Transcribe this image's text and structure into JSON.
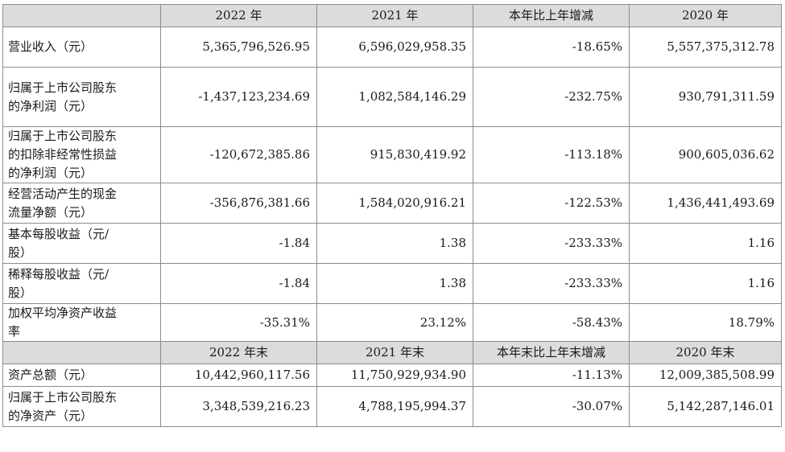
{
  "header1": [
    "2022 年",
    "2021 年",
    "本年比上年增减",
    "2020 年"
  ],
  "header2": [
    "2022 年末",
    "2021 年末",
    "本年末比上年末增减",
    "2020 年末"
  ],
  "rows1": [
    {
      "label": [
        "营业收入（元）"
      ],
      "values": [
        "5,365,796,526.95",
        "6,596,029,958.35",
        "-18.65%",
        "5,557,375,312.78"
      ]
    },
    {
      "label": [
        "归属于上市公司股东",
        "的净利润（元）"
      ],
      "values": [
        "-1,437,123,234.69",
        "1,082,584,146.29",
        "-232.75%",
        "930,791,311.59"
      ]
    },
    {
      "label": [
        "归属于上市公司股东",
        "的扣除非经常性损益",
        "的净利润（元）"
      ],
      "values": [
        "-120,672,385.86",
        "915,830,419.92",
        "-113.18%",
        "900,605,036.62"
      ]
    },
    {
      "label": [
        "经营活动产生的现金",
        "流量净额（元）"
      ],
      "values": [
        "-356,876,381.66",
        "1,584,020,916.21",
        "-122.53%",
        "1,436,441,493.69"
      ]
    },
    {
      "label": [
        "基本每股收益（元/",
        "股）"
      ],
      "values": [
        "-1.84",
        "1.38",
        "-233.33%",
        "1.16"
      ]
    },
    {
      "label": [
        "稀释每股收益（元/",
        "股）"
      ],
      "values": [
        "-1.84",
        "1.38",
        "-233.33%",
        "1.16"
      ]
    },
    {
      "label": [
        "加权平均净资产收益",
        "率"
      ],
      "values": [
        "-35.31%",
        "23.12%",
        "-58.43%",
        "18.79%"
      ]
    }
  ],
  "rows2": [
    {
      "label": [
        "资产总额（元）"
      ],
      "values": [
        "10,442,960,117.56",
        "11,750,929,934.90",
        "-11.13%",
        "12,009,385,508.99"
      ]
    },
    {
      "label": [
        "归属于上市公司股东",
        "的净资产（元）"
      ],
      "values": [
        "3,348,539,216.23",
        "4,788,195,994.37",
        "-30.07%",
        "5,142,287,146.01"
      ]
    }
  ]
}
